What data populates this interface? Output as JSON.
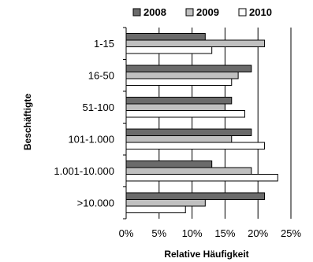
{
  "chart_data": {
    "type": "bar",
    "orientation": "horizontal",
    "categories": [
      "1-15",
      "16-50",
      "51-100",
      "101-1.000",
      "1.001-10.000",
      ">10.000"
    ],
    "series": [
      {
        "name": "2008",
        "values": [
          12,
          19,
          16,
          19,
          13,
          21
        ],
        "color": "#6b6b6b"
      },
      {
        "name": "2009",
        "values": [
          21,
          17,
          15,
          16,
          19,
          12
        ],
        "color": "#c0c0c0"
      },
      {
        "name": "2010",
        "values": [
          13,
          16,
          18,
          21,
          23,
          9
        ],
        "color": "#ffffff"
      }
    ],
    "x_ticks": [
      "0%",
      "5%",
      "10%",
      "15%",
      "20%",
      "25%"
    ],
    "xlim": [
      0,
      25
    ],
    "xlabel": "Relative Häufigkeit",
    "ylabel": "Beschäftigte",
    "legend_position": "top",
    "grid": "vertical"
  }
}
